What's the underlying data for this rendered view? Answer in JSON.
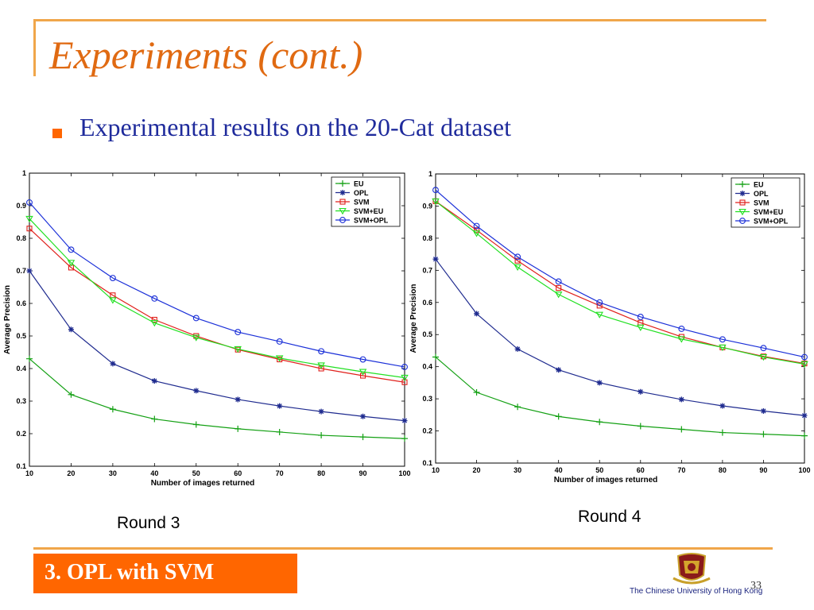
{
  "slide": {
    "title": "Experiments (cont.)",
    "bullet": "Experimental results on the 20-Cat dataset",
    "footer_section": "3. OPL with SVM",
    "university": "The Chinese University of Hong Kong",
    "page_number": "33",
    "colors": {
      "accent_orange": "#ff6600",
      "rule_orange": "#f0a64a",
      "title_orange": "#e06a12",
      "bullet_blue": "#1f2b9c"
    }
  },
  "chart_data": [
    {
      "type": "line",
      "caption": "Round 3",
      "xlabel": "Number of images returned",
      "ylabel": "Average Precision",
      "xlim": [
        10,
        100
      ],
      "ylim": [
        0.1,
        1
      ],
      "x": [
        10,
        20,
        30,
        40,
        50,
        60,
        70,
        80,
        90,
        100
      ],
      "x_tick_labels": [
        "10",
        "20",
        "30",
        "40",
        "50",
        "60",
        "70",
        "80",
        "90",
        "100"
      ],
      "y_ticks": [
        0.1,
        0.2,
        0.3,
        0.4,
        0.5,
        0.6,
        0.7,
        0.8,
        0.9,
        1
      ],
      "y_tick_labels": [
        "0.1",
        "0.2",
        "0.3",
        "0.4",
        "0.5",
        "0.6",
        "0.7",
        "0.8",
        "0.9",
        "1"
      ],
      "legend_position": "top-right",
      "grid": false,
      "series": [
        {
          "name": "EU",
          "color": "#13a013",
          "marker": "plus",
          "values": [
            0.43,
            0.32,
            0.275,
            0.245,
            0.228,
            0.215,
            0.205,
            0.195,
            0.19,
            0.185
          ]
        },
        {
          "name": "OPL",
          "color": "#1f2b8f",
          "marker": "star",
          "values": [
            0.7,
            0.52,
            0.415,
            0.362,
            0.332,
            0.305,
            0.285,
            0.268,
            0.253,
            0.24
          ]
        },
        {
          "name": "SVM",
          "color": "#e0201b",
          "marker": "square",
          "values": [
            0.83,
            0.71,
            0.625,
            0.55,
            0.5,
            0.458,
            0.428,
            0.4,
            0.378,
            0.358
          ]
        },
        {
          "name": "SVM+EU",
          "color": "#22e022",
          "marker": "triangle-down",
          "values": [
            0.86,
            0.725,
            0.61,
            0.54,
            0.495,
            0.46,
            0.432,
            0.41,
            0.39,
            0.372
          ]
        },
        {
          "name": "SVM+OPL",
          "color": "#1a2fd8",
          "marker": "circle",
          "values": [
            0.91,
            0.765,
            0.678,
            0.615,
            0.555,
            0.512,
            0.483,
            0.453,
            0.428,
            0.405
          ]
        }
      ]
    },
    {
      "type": "line",
      "caption": "Round 4",
      "xlabel": "Number of images returned",
      "ylabel": "Average Precision",
      "xlim": [
        10,
        100
      ],
      "ylim": [
        0.1,
        1
      ],
      "x": [
        10,
        20,
        30,
        40,
        50,
        60,
        70,
        80,
        90,
        100
      ],
      "x_tick_labels": [
        "10",
        "20",
        "30",
        "40",
        "50",
        "60",
        "70",
        "80",
        "90",
        "100"
      ],
      "y_ticks": [
        0.1,
        0.2,
        0.3,
        0.4,
        0.5,
        0.6,
        0.7,
        0.8,
        0.9,
        1
      ],
      "y_tick_labels": [
        "0.1",
        "0.2",
        "0.3",
        "0.4",
        "0.5",
        "0.6",
        "0.7",
        "0.8",
        "0.9",
        "1"
      ],
      "legend_position": "top-right",
      "grid": false,
      "series": [
        {
          "name": "EU",
          "color": "#13a013",
          "marker": "plus",
          "values": [
            0.43,
            0.32,
            0.275,
            0.245,
            0.228,
            0.215,
            0.205,
            0.195,
            0.19,
            0.185
          ]
        },
        {
          "name": "OPL",
          "color": "#1f2b8f",
          "marker": "star",
          "values": [
            0.735,
            0.565,
            0.455,
            0.39,
            0.35,
            0.322,
            0.298,
            0.278,
            0.262,
            0.248
          ]
        },
        {
          "name": "SVM",
          "color": "#e0201b",
          "marker": "square",
          "values": [
            0.915,
            0.825,
            0.73,
            0.645,
            0.59,
            0.537,
            0.493,
            0.46,
            0.432,
            0.41
          ]
        },
        {
          "name": "SVM+EU",
          "color": "#22e022",
          "marker": "triangle-down",
          "values": [
            0.915,
            0.815,
            0.71,
            0.625,
            0.562,
            0.522,
            0.486,
            0.46,
            0.43,
            0.408
          ]
        },
        {
          "name": "SVM+OPL",
          "color": "#1a2fd8",
          "marker": "circle",
          "values": [
            0.95,
            0.838,
            0.742,
            0.665,
            0.6,
            0.555,
            0.518,
            0.485,
            0.458,
            0.43
          ]
        }
      ]
    }
  ]
}
